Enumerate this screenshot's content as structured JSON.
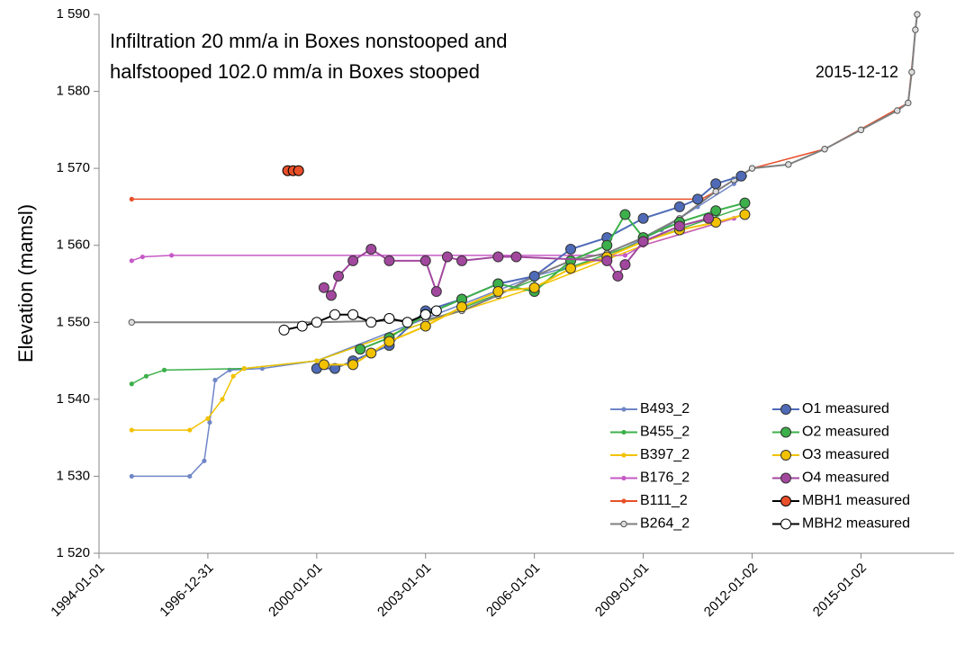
{
  "chart_data": {
    "type": "line",
    "title_lines": [
      "Infiltration 20 mm/a in Boxes nonstooped and",
      "halfstooped 102.0 mm/a in Boxes stooped"
    ],
    "annotation": {
      "text": "2015-12-12"
    },
    "ylabel": "Elevation (mamsl)",
    "xlim": [
      1994,
      2017.57
    ],
    "xticks": [
      {
        "value": 1994,
        "label": "1994-01-01"
      },
      {
        "value": 1997,
        "label": "1996-12-31"
      },
      {
        "value": 2000,
        "label": "2000-01-01"
      },
      {
        "value": 2003,
        "label": "2003-01-01"
      },
      {
        "value": 2006,
        "label": "2006-01-01"
      },
      {
        "value": 2009,
        "label": "2009-01-01"
      },
      {
        "value": 2012,
        "label": "2012-01-02"
      },
      {
        "value": 2015,
        "label": "2015-01-02"
      }
    ],
    "ylim": [
      1520,
      1590
    ],
    "yticks": [
      {
        "value": 1520,
        "label": "1 520"
      },
      {
        "value": 1530,
        "label": "1 530"
      },
      {
        "value": 1540,
        "label": "1 540"
      },
      {
        "value": 1550,
        "label": "1 550"
      },
      {
        "value": 1560,
        "label": "1 560"
      },
      {
        "value": 1570,
        "label": "1 570"
      },
      {
        "value": 1580,
        "label": "1 580"
      },
      {
        "value": 1590,
        "label": "1 590"
      }
    ],
    "series": [
      {
        "name": "B493_2",
        "color": "#6f86c7",
        "marker": "dot",
        "x": [
          1994.9,
          1996.5,
          1996.9,
          1997.05,
          1997.2,
          1997.6,
          1998.5,
          2000,
          2003,
          2006,
          2008,
          2009.5,
          2010.5,
          2011.5,
          2011.8
        ],
        "values": [
          1530,
          1530,
          1532,
          1537,
          1542.5,
          1543.8,
          1544,
          1545,
          1550.5,
          1556,
          1558.5,
          1562,
          1565,
          1568,
          1569
        ]
      },
      {
        "name": "B455_2",
        "color": "#3cb04a",
        "marker": "dot",
        "x": [
          1994.9,
          1995.3,
          1995.8,
          1998,
          2000,
          2003,
          2006,
          2009,
          2011.8
        ],
        "values": [
          1542,
          1543,
          1543.8,
          1544,
          1545,
          1550,
          1555.5,
          1560.5,
          1565
        ]
      },
      {
        "name": "B397_2",
        "color": "#f2c200",
        "marker": "dot",
        "x": [
          1994.9,
          1996.5,
          1997,
          1997.4,
          1997.7,
          1998,
          2000,
          2003,
          2006,
          2009,
          2011.8
        ],
        "values": [
          1536,
          1536,
          1537.5,
          1540,
          1543,
          1544,
          1545,
          1550,
          1554.5,
          1560,
          1564
        ]
      },
      {
        "name": "B176_2",
        "color": "#c65ac6",
        "marker": "dot",
        "x": [
          1994.9,
          1995.2,
          1996,
          2008.5,
          2009,
          2011.5
        ],
        "values": [
          1558,
          1558.5,
          1558.7,
          1558.7,
          1560,
          1563.5
        ]
      },
      {
        "name": "B111_2",
        "color": "#e8502a",
        "marker": "dot",
        "x": [
          1994.9,
          2010.6,
          2011,
          2012,
          2014,
          2016.3,
          2016.55
        ],
        "values": [
          1566,
          1566,
          1567,
          1570,
          1572.5,
          1578.5,
          1590
        ]
      },
      {
        "name": "B264_2",
        "color": "#7f7f7f",
        "marker": "ring",
        "x": [
          1994.9,
          2000,
          2003,
          2004,
          2005,
          2006,
          2007,
          2008,
          2009,
          2010,
          2011,
          2011.5,
          2012,
          2013,
          2014,
          2015,
          2016,
          2016.3,
          2016.4,
          2016.5,
          2016.55
        ],
        "values": [
          1550,
          1550,
          1550.3,
          1551.5,
          1553.5,
          1556,
          1558,
          1559,
          1561,
          1563.5,
          1567,
          1568.5,
          1570,
          1570.5,
          1572.5,
          1575,
          1577.5,
          1578.5,
          1582.5,
          1588,
          1590
        ]
      },
      {
        "name": "O1 measured",
        "color": "#4f6bb8",
        "marker": "circle",
        "x": [
          2000,
          2000.5,
          2001,
          2002,
          2003,
          2004,
          2005,
          2006,
          2007,
          2008,
          2009,
          2010,
          2010.5,
          2011,
          2011.7
        ],
        "values": [
          1544,
          1544,
          1545,
          1547,
          1551.5,
          1553,
          1555,
          1556,
          1559.5,
          1561,
          1563.5,
          1565,
          1566,
          1568,
          1569
        ]
      },
      {
        "name": "O2 measured",
        "color": "#3cb04a",
        "marker": "circle",
        "x": [
          2001.2,
          2002,
          2003,
          2004,
          2005,
          2006,
          2007,
          2008,
          2008.5,
          2009,
          2010,
          2011,
          2011.8
        ],
        "values": [
          1546.5,
          1548,
          1551,
          1553,
          1555,
          1554,
          1558,
          1560,
          1564,
          1561,
          1563,
          1564.5,
          1565.5
        ]
      },
      {
        "name": "O3 measured",
        "color": "#f2c200",
        "marker": "circle",
        "x": [
          2000.2,
          2001,
          2001.5,
          2002,
          2003,
          2004,
          2005,
          2006,
          2007,
          2008,
          2009,
          2010,
          2011,
          2011.8
        ],
        "values": [
          1544.5,
          1544.5,
          1546,
          1547.5,
          1549.5,
          1552,
          1554,
          1554.5,
          1557,
          1558.5,
          1560.5,
          1562,
          1563,
          1564
        ]
      },
      {
        "name": "O4 measured",
        "color": "#a2479e",
        "marker": "circle",
        "x": [
          2000.2,
          2000.4,
          2000.6,
          2001,
          2001.5,
          2002,
          2003,
          2003.3,
          2003.6,
          2004,
          2005,
          2005.5,
          2008,
          2008.3,
          2008.5,
          2009,
          2010,
          2010.8
        ],
        "values": [
          1554.5,
          1553.5,
          1556,
          1558,
          1559.5,
          1558,
          1558,
          1554,
          1558.5,
          1558,
          1558.5,
          1558.5,
          1558,
          1556,
          1557.5,
          1560.5,
          1562.5,
          1563.5
        ]
      },
      {
        "name": "MBH1 measured",
        "color": "#e8502a",
        "line_color": "#000000",
        "marker": "circle",
        "x": [
          1999.2,
          1999.35,
          1999.5
        ],
        "values": [
          1569.7,
          1569.7,
          1569.7
        ]
      },
      {
        "name": "MBH2 measured",
        "color": "#ffffff",
        "line_color": "#000000",
        "marker": "circle",
        "x": [
          1999.1,
          1999.6,
          2000,
          2000.5,
          2001,
          2001.5,
          2002,
          2002.5,
          2003,
          2003.3
        ],
        "values": [
          1549,
          1549.5,
          1550,
          1551,
          1551,
          1550,
          1550.5,
          1550,
          1551,
          1551.5
        ]
      }
    ]
  }
}
